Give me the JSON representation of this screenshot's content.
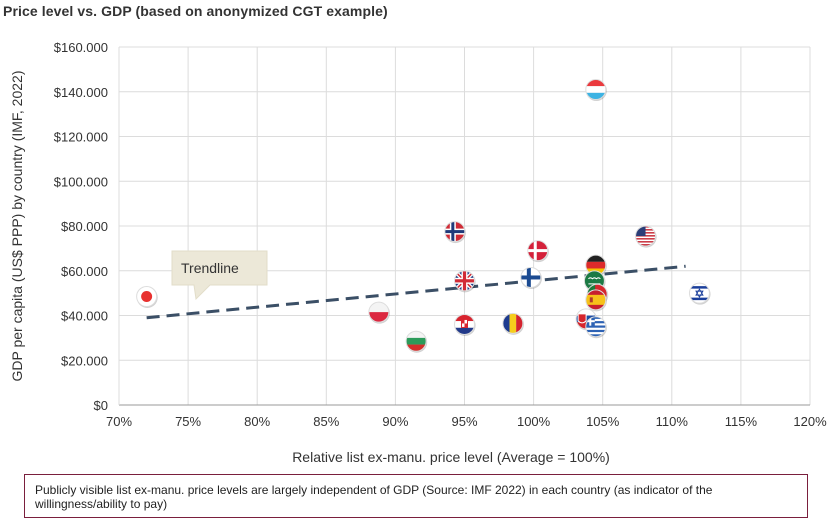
{
  "title": "Price level vs. GDP (based on anonymized CGT example)",
  "note": "Publicly visible list ex-manu. price levels are largely independent of GDP (Source: IMF 2022) in each country (as indicator of the willingness/ability to pay)",
  "chart_data": {
    "type": "scatter",
    "title": "Price level vs. GDP (based on anonymized CGT example)",
    "xlabel": "Relative list ex-manu. price level (Average = 100%)",
    "ylabel": "GDP per capita (US$ PPP) by country (IMF, 2022)",
    "xlim": [
      70,
      120
    ],
    "ylim": [
      0,
      160000
    ],
    "x_ticks": [
      70,
      75,
      80,
      85,
      90,
      95,
      100,
      105,
      110,
      115,
      120
    ],
    "x_tick_labels": [
      "70%",
      "75%",
      "80%",
      "85%",
      "90%",
      "95%",
      "100%",
      "105%",
      "110%",
      "115%",
      "120%"
    ],
    "y_ticks": [
      0,
      20000,
      40000,
      60000,
      80000,
      100000,
      120000,
      140000,
      160000
    ],
    "y_tick_labels": [
      "$0",
      "$20.000",
      "$40.000",
      "$60.000",
      "$80.000",
      "$100.000",
      "$120.000",
      "$140.000",
      "$160.000"
    ],
    "grid": true,
    "points": [
      {
        "x": 72.0,
        "y": 48500,
        "icon": "japan-flag-icon"
      },
      {
        "x": 88.8,
        "y": 41500,
        "icon": "poland-flag-icon"
      },
      {
        "x": 91.5,
        "y": 28500,
        "icon": "bulgaria-flag-icon"
      },
      {
        "x": 94.3,
        "y": 77500,
        "icon": "norway-flag-icon"
      },
      {
        "x": 95.0,
        "y": 55500,
        "icon": "uk-flag-icon"
      },
      {
        "x": 95.0,
        "y": 36000,
        "icon": "croatia-flag-icon"
      },
      {
        "x": 98.5,
        "y": 36500,
        "icon": "romania-flag-icon"
      },
      {
        "x": 99.8,
        "y": 57000,
        "icon": "finland-flag-icon"
      },
      {
        "x": 100.3,
        "y": 69000,
        "icon": "denmark-flag-icon"
      },
      {
        "x": 103.8,
        "y": 38500,
        "icon": "slovakia-flag-icon"
      },
      {
        "x": 104.5,
        "y": 35000,
        "icon": "greece-flag-icon"
      },
      {
        "x": 104.5,
        "y": 141000,
        "icon": "luxembourg-flag-icon"
      },
      {
        "x": 104.5,
        "y": 62500,
        "icon": "germany-flag-icon"
      },
      {
        "x": 104.4,
        "y": 55500,
        "icon": "saudi-arabia-flag-icon"
      },
      {
        "x": 104.6,
        "y": 49500,
        "icon": "portugal-flag-icon"
      },
      {
        "x": 104.5,
        "y": 47000,
        "icon": "spain-flag-icon"
      },
      {
        "x": 108.1,
        "y": 75500,
        "icon": "usa-flag-icon"
      },
      {
        "x": 112.0,
        "y": 50000,
        "icon": "israel-flag-icon"
      }
    ],
    "trendline": {
      "label": "Trendline",
      "from": {
        "x": 72.0,
        "y": 39000
      },
      "to": {
        "x": 111.0,
        "y": 62000
      },
      "style": "dashed",
      "color": "#3b4f66"
    }
  }
}
